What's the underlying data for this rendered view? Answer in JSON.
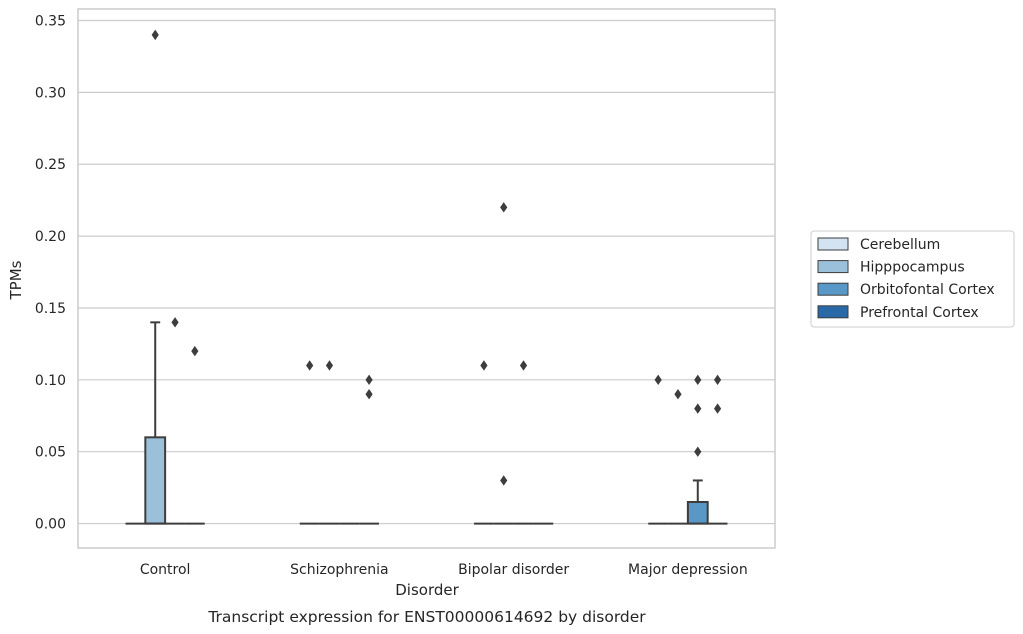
{
  "chart_data": {
    "type": "box",
    "title": "",
    "caption": "Transcript expression for ENST00000614692 by disorder",
    "xlabel": "Disorder",
    "ylabel": "TPMs",
    "ylim": [
      -0.017,
      0.358
    ],
    "yticks": [
      0.0,
      0.05,
      0.1,
      0.15,
      0.2,
      0.25,
      0.3,
      0.35
    ],
    "ytick_labels": [
      "0.00",
      "0.05",
      "0.10",
      "0.15",
      "0.20",
      "0.25",
      "0.30",
      "0.35"
    ],
    "grid": "horizontal",
    "legend_position": "right",
    "categories": [
      "Control",
      "Schizophrenia",
      "Bipolar disorder",
      "Major depression"
    ],
    "series": [
      {
        "name": "Cerebellum",
        "color": "#d4e3f1",
        "boxes": [
          {
            "q1": 0,
            "median": 0,
            "q3": 0,
            "whisker_low": 0,
            "whisker_high": 0,
            "outliers": []
          },
          {
            "q1": 0,
            "median": 0,
            "q3": 0,
            "whisker_low": 0,
            "whisker_high": 0,
            "outliers": [
              0.11
            ]
          },
          {
            "q1": 0,
            "median": 0,
            "q3": 0,
            "whisker_low": 0,
            "whisker_high": 0,
            "outliers": [
              0.11
            ]
          },
          {
            "q1": 0,
            "median": 0,
            "q3": 0,
            "whisker_low": 0,
            "whisker_high": 0,
            "outliers": [
              0.1
            ]
          }
        ]
      },
      {
        "name": "Hipppocampus",
        "color": "#9bc1da",
        "boxes": [
          {
            "q1": 0,
            "median": 0,
            "q3": 0.06,
            "whisker_low": 0,
            "whisker_high": 0.14,
            "outliers": [
              0.34
            ]
          },
          {
            "q1": 0,
            "median": 0,
            "q3": 0,
            "whisker_low": 0,
            "whisker_high": 0,
            "outliers": [
              0.11
            ]
          },
          {
            "q1": 0,
            "median": 0,
            "q3": 0,
            "whisker_low": 0,
            "whisker_high": 0,
            "outliers": [
              0.22,
              0.03
            ]
          },
          {
            "q1": 0,
            "median": 0,
            "q3": 0,
            "whisker_low": 0,
            "whisker_high": 0,
            "outliers": [
              0.09
            ]
          }
        ]
      },
      {
        "name": "Orbitofontal Cortex",
        "color": "#5998c6",
        "boxes": [
          {
            "q1": 0,
            "median": 0,
            "q3": 0,
            "whisker_low": 0,
            "whisker_high": 0,
            "outliers": [
              0.14
            ]
          },
          {
            "q1": 0,
            "median": 0,
            "q3": 0,
            "whisker_low": 0,
            "whisker_high": 0,
            "outliers": []
          },
          {
            "q1": 0,
            "median": 0,
            "q3": 0,
            "whisker_low": 0,
            "whisker_high": 0,
            "outliers": [
              0.11
            ]
          },
          {
            "q1": 0,
            "median": 0,
            "q3": 0.015,
            "whisker_low": 0,
            "whisker_high": 0.03,
            "outliers": [
              0.1,
              0.08,
              0.05
            ]
          }
        ]
      },
      {
        "name": "Prefrontal Cortex",
        "color": "#2a69a8",
        "boxes": [
          {
            "q1": 0,
            "median": 0,
            "q3": 0,
            "whisker_low": 0,
            "whisker_high": 0,
            "outliers": [
              0.12
            ]
          },
          {
            "q1": 0,
            "median": 0,
            "q3": 0,
            "whisker_low": 0,
            "whisker_high": 0,
            "outliers": [
              0.1,
              0.09
            ]
          },
          {
            "q1": 0,
            "median": 0,
            "q3": 0,
            "whisker_low": 0,
            "whisker_high": 0,
            "outliers": []
          },
          {
            "q1": 0,
            "median": 0,
            "q3": 0,
            "whisker_low": 0,
            "whisker_high": 0,
            "outliers": [
              0.1,
              0.08
            ]
          }
        ]
      }
    ]
  },
  "colors": {
    "grid": "#cccccc",
    "frame": "#cccccc",
    "line": "#3d3d3d",
    "text": "#262626"
  }
}
